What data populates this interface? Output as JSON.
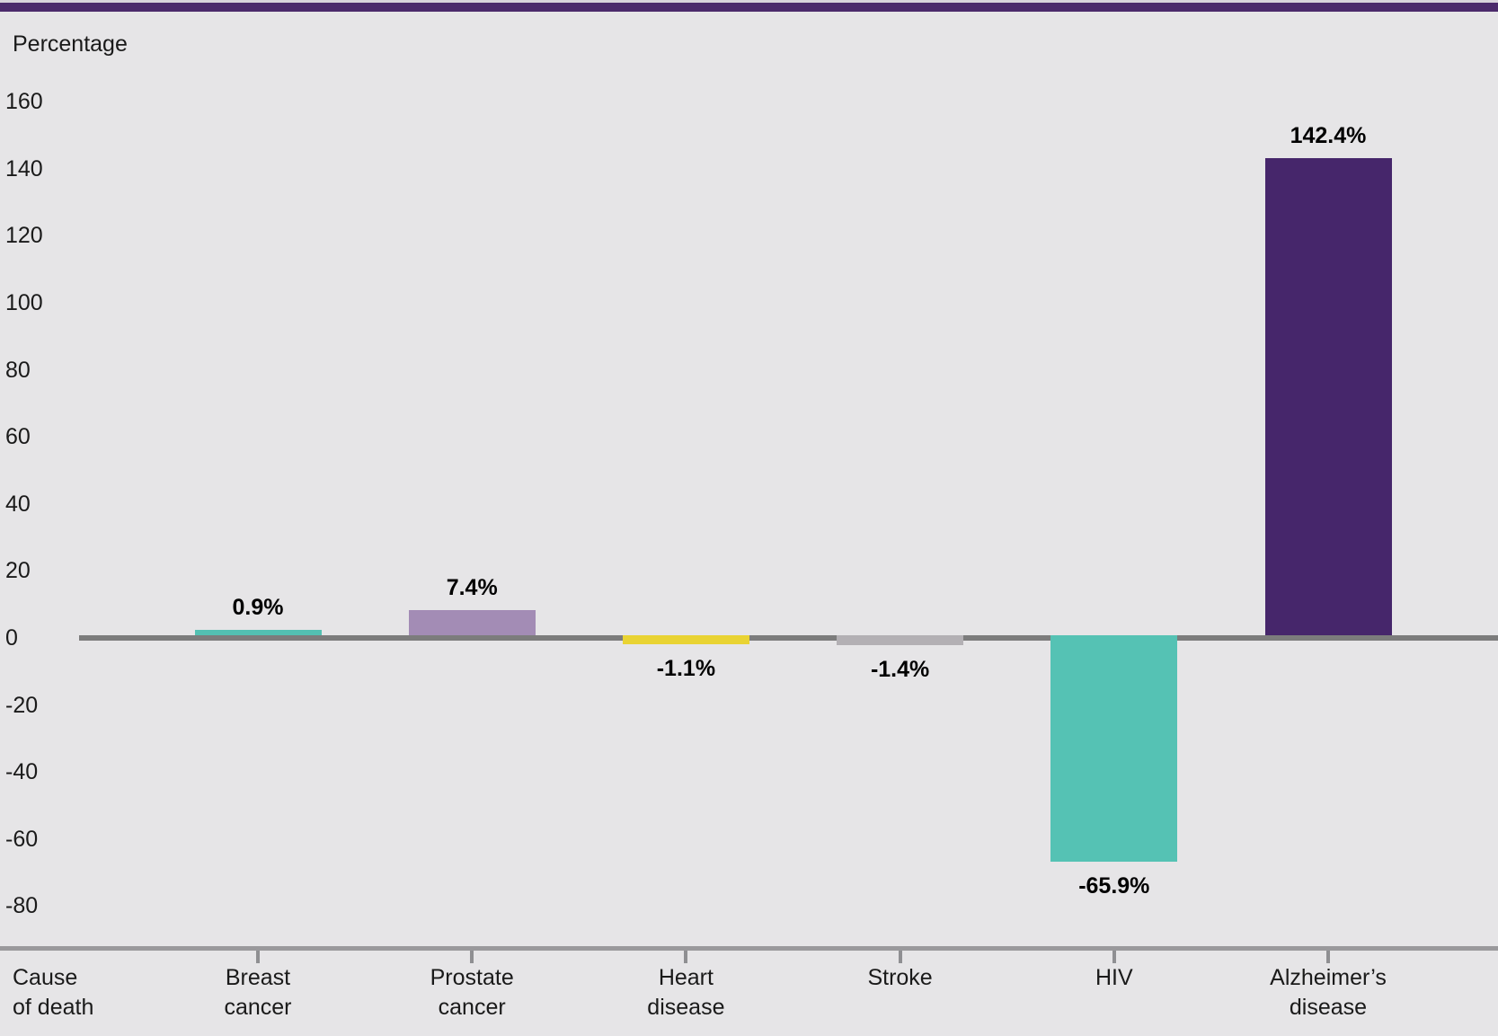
{
  "page": {
    "background_color": "#E6E5E7",
    "top_band_color": "#4B2A6B",
    "top_strip_color": "#D8D4DB"
  },
  "chart_data": {
    "type": "bar",
    "title": "",
    "y_axis_label": "Percentage",
    "x_axis_label": "Cause of death",
    "x_axis_label_lines": [
      "Cause",
      "of death"
    ],
    "ylim": [
      -80,
      160
    ],
    "ytick_step": 20,
    "yticks": [
      160,
      140,
      120,
      100,
      80,
      60,
      40,
      20,
      0,
      -20,
      -40,
      -60,
      -80
    ],
    "grid": false,
    "legend_position": "none",
    "categories": [
      "Breast cancer",
      "Prostate cancer",
      "Heart disease",
      "Stroke",
      "HIV",
      "Alzheimer’s disease"
    ],
    "category_label_lines": [
      [
        "Breast",
        "cancer"
      ],
      [
        "Prostate",
        "cancer"
      ],
      [
        "Heart",
        "disease"
      ],
      [
        "Stroke"
      ],
      [
        "HIV"
      ],
      [
        "Alzheimer’s",
        "disease"
      ]
    ],
    "values": [
      0.9,
      7.4,
      -1.1,
      -1.4,
      -65.9,
      142.4
    ],
    "value_labels": [
      "0.9%",
      "7.4%",
      "-1.1%",
      "-1.4%",
      "-65.9%",
      "142.4%"
    ],
    "bar_colors": [
      "#53C0B2",
      "#A38CB5",
      "#E9D333",
      "#B3B0B4",
      "#55C2B4",
      "#46266B"
    ],
    "zero_line_color": "#7C7C7C",
    "x_axis_line_color": "#9A999C",
    "text_color": "#1a1a1a"
  }
}
